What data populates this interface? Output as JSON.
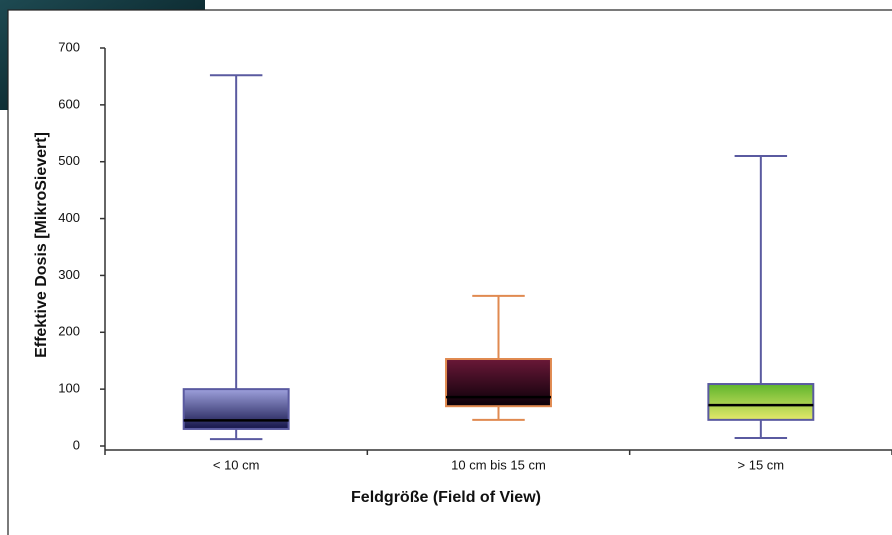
{
  "chart_data": {
    "type": "box",
    "x_label": "Feldgröße (Field of View)",
    "y_label": "Effektive Dosis [MikroSievert]",
    "categories": [
      "< 10 cm",
      "10 cm bis 15 cm",
      "> 15 cm"
    ],
    "min": [
      12,
      46,
      14
    ],
    "q1": [
      30,
      70,
      46
    ],
    "median": [
      45,
      86,
      72
    ],
    "q3": [
      100,
      153,
      109
    ],
    "max": [
      652,
      264,
      510
    ],
    "fill_top": [
      "#9da0dc",
      "#6a1838",
      "#5fb52c"
    ],
    "fill_bottom": [
      "#15154a",
      "#0a0008",
      "#e4e86a"
    ],
    "line_colors": [
      "#5a5aa0",
      "#e08a50",
      "#5a5aa0"
    ],
    "ylim": [
      0,
      700
    ],
    "yticks": [
      0,
      100,
      200,
      300,
      400,
      500,
      600,
      700
    ],
    "grid": false
  }
}
